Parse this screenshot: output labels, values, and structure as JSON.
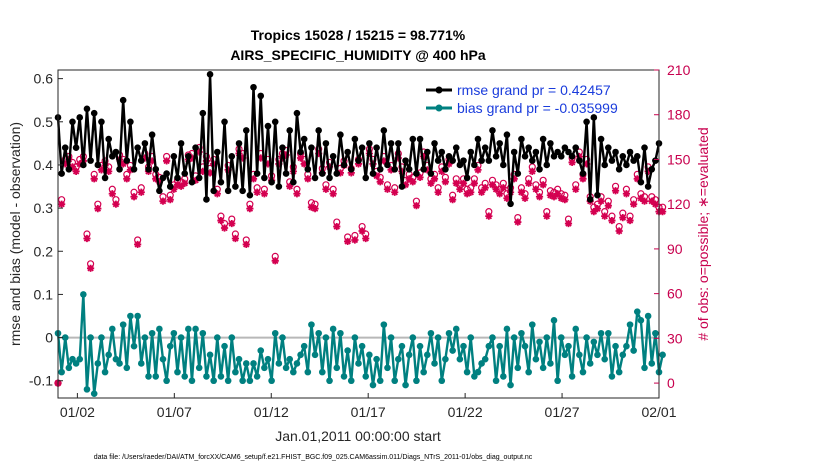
{
  "chart_data": {
    "type": "line",
    "title": "Tropics 15028 / 15215 = 98.771%",
    "subtitle": "AIRS_SPECIFIC_HUMIDITY @ 400 hPa",
    "xlabel": "Jan.01,2011 00:00:00 start",
    "ylabel": "rmse and bias (model - observation)",
    "ylabel_right": "# of obs: o=possible; ∗=evaluated",
    "xlim": [
      0,
      31
    ],
    "ylim": [
      -0.14,
      0.62
    ],
    "ylim_right": [
      -10,
      210
    ],
    "x_ticks": [
      1,
      6,
      11,
      16,
      21,
      26,
      31
    ],
    "x_tick_labels": [
      "01/02",
      "01/07",
      "01/12",
      "01/17",
      "01/22",
      "01/27",
      "02/01"
    ],
    "y_ticks": [
      -0.1,
      0,
      0.1,
      0.2,
      0.3,
      0.4,
      0.5,
      0.6
    ],
    "y_tick_labels": [
      "-0.1",
      "0",
      "0.1",
      "0.2",
      "0.3",
      "0.4",
      "0.5",
      "0.6"
    ],
    "y_ticks_right": [
      0,
      30,
      60,
      90,
      120,
      150,
      180,
      210
    ],
    "y_tick_labels_right": [
      "0",
      "30",
      "60",
      "90",
      "120",
      "150",
      "180",
      "210"
    ],
    "footer": "data file: /Users/raeder/DAI/ATM_forcXX/CAM6_setup/f.e21.FHIST_BGC.f09_025.CAM6assim.011/Diags_NTrS_2011-01/obs_diag_output.nc",
    "colors": {
      "rmse": "#000000",
      "bias": "#008080",
      "obs": "#d40050",
      "zero_line": "#b8b8b8"
    },
    "series": [
      {
        "name": "rmse grand pr = 0.42457",
        "values": [
          0.51,
          0.38,
          0.44,
          0.39,
          0.5,
          0.44,
          0.51,
          0.4,
          0.53,
          0.41,
          0.52,
          0.4,
          0.5,
          0.37,
          0.46,
          0.42,
          0.43,
          0.39,
          0.55,
          0.41,
          0.5,
          0.39,
          0.44,
          0.41,
          0.45,
          0.39,
          0.47,
          0.39,
          0.34,
          0.37,
          0.38,
          0.35,
          0.42,
          0.37,
          0.45,
          0.38,
          0.42,
          0.36,
          0.44,
          0.37,
          0.52,
          0.32,
          0.61,
          0.34,
          0.43,
          0.36,
          0.5,
          0.34,
          0.42,
          0.35,
          0.45,
          0.34,
          0.48,
          0.33,
          0.58,
          0.38,
          0.56,
          0.37,
          0.49,
          0.36,
          0.5,
          0.35,
          0.44,
          0.38,
          0.48,
          0.36,
          0.52,
          0.43,
          0.46,
          0.39,
          0.44,
          0.37,
          0.48,
          0.38,
          0.45,
          0.37,
          0.42,
          0.38,
          0.47,
          0.4,
          0.43,
          0.39,
          0.46,
          0.41,
          0.44,
          0.37,
          0.45,
          0.38,
          0.44,
          0.39,
          0.48,
          0.4,
          0.45,
          0.39,
          0.45,
          0.35,
          0.41,
          0.39,
          0.46,
          0.38,
          0.46,
          0.39,
          0.43,
          0.38,
          0.45,
          0.41,
          0.43,
          0.39,
          0.42,
          0.41,
          0.44,
          0.4,
          0.41,
          0.37,
          0.43,
          0.4,
          0.46,
          0.41,
          0.44,
          0.41,
          0.48,
          0.42,
          0.45,
          0.4,
          0.47,
          0.31,
          0.43,
          0.38,
          0.46,
          0.42,
          0.44,
          0.41,
          0.43,
          0.39,
          0.46,
          0.4,
          0.45,
          0.42,
          0.43,
          0.42,
          0.44,
          0.43,
          0.42,
          0.44,
          0.41,
          0.38,
          0.5,
          0.32,
          0.51,
          0.33,
          0.46,
          0.4,
          0.44,
          0.41,
          0.43,
          0.39,
          0.42,
          0.4,
          0.43,
          0.41,
          0.42,
          0.36,
          0.44,
          0.35,
          0.39,
          0.41,
          0.45
        ]
      },
      {
        "name": "bias grand pr = -0.035999",
        "values": [
          0.01,
          -0.08,
          0.0,
          -0.07,
          -0.05,
          -0.06,
          -0.05,
          0.1,
          -0.12,
          0.0,
          -0.13,
          -0.06,
          0.0,
          -0.08,
          -0.04,
          0.02,
          -0.05,
          -0.06,
          0.03,
          -0.07,
          0.05,
          -0.02,
          0.05,
          -0.06,
          0.0,
          -0.09,
          0.01,
          -0.09,
          0.02,
          -0.05,
          -0.1,
          -0.02,
          0.01,
          -0.08,
          0.0,
          -0.09,
          0.02,
          -0.1,
          0.02,
          -0.07,
          0.01,
          -0.09,
          -0.04,
          -0.1,
          0.0,
          -0.09,
          -0.02,
          -0.1,
          0.0,
          -0.08,
          -0.05,
          -0.1,
          -0.06,
          -0.1,
          -0.06,
          -0.09,
          -0.03,
          -0.07,
          -0.05,
          -0.1,
          0.01,
          -0.06,
          0.0,
          -0.07,
          -0.05,
          -0.08,
          -0.06,
          -0.04,
          -0.02,
          -0.08,
          0.03,
          -0.04,
          0.01,
          -0.08,
          0.0,
          -0.1,
          0.02,
          -0.07,
          0.01,
          -0.09,
          -0.03,
          -0.1,
          0.0,
          -0.06,
          -0.02,
          -0.09,
          -0.04,
          -0.11,
          -0.05,
          -0.1,
          0.03,
          -0.07,
          0.0,
          -0.1,
          -0.05,
          -0.02,
          -0.11,
          -0.04,
          0.0,
          -0.1,
          -0.02,
          -0.08,
          -0.04,
          0.01,
          -0.06,
          0.0,
          -0.1,
          -0.05,
          0.01,
          -0.03,
          0.02,
          -0.05,
          -0.02,
          -0.08,
          0.0,
          -0.09,
          -0.08,
          -0.06,
          -0.05,
          -0.02,
          0.0,
          -0.1,
          -0.02,
          -0.09,
          0.02,
          -0.11,
          0.0,
          -0.07,
          0.01,
          -0.02,
          -0.08,
          0.03,
          -0.05,
          -0.01,
          -0.07,
          0.0,
          -0.06,
          0.04,
          -0.1,
          0.0,
          -0.04,
          -0.02,
          -0.09,
          0.02,
          -0.04,
          -0.08,
          0.0,
          -0.06,
          -0.01,
          -0.04,
          0.01,
          -0.05,
          0.01,
          -0.09,
          -0.02,
          -0.08,
          -0.04,
          -0.02,
          0.03,
          -0.03,
          0.06,
          0.04,
          -0.07,
          0.05,
          -0.06,
          0.01,
          -0.08,
          -0.04
        ]
      },
      {
        "name": "obs possible (o)",
        "axis": "right",
        "values": [
          0,
          123,
          150,
          152,
          148,
          145,
          150,
          152,
          100,
          80,
          140,
          120,
          146,
          149,
          145,
          130,
          123,
          153,
          150,
          140,
          146,
          128,
          96,
          131,
          154,
          145,
          152,
          140,
          138,
          125,
          152,
          126,
          133,
          136,
          135,
          137,
          153,
          154,
          139,
          158,
          145,
          152,
          144,
          150,
          130,
          112,
          107,
          146,
          110,
          100,
          157,
          154,
          96,
          120,
          140,
          131,
          154,
          130,
          150,
          139,
          85,
          150,
          154,
          156,
          135,
          145,
          130,
          154,
          150,
          140,
          121,
          120,
          157,
          144,
          133,
          148,
          130,
          108,
          144,
          149,
          98,
          144,
          99,
          150,
          105,
          100,
          157,
          150,
          142,
          138,
          152,
          133,
          146,
          131,
          154,
          145,
          136,
          140,
          138,
          122,
          141,
          155,
          146,
          137,
          140,
          131,
          145,
          138,
          150,
          126,
          137,
          133,
          137,
          130,
          131,
          137,
          146,
          131,
          134,
          115,
          136,
          133,
          130,
          134,
          127,
          131,
          140,
          111,
          131,
          127,
          137,
          145,
          133,
          128,
          136,
          115,
          129,
          128,
          130,
          127,
          126,
          110,
          151,
          133,
          155,
          140,
          150,
          125,
          118,
          120,
          125,
          115,
          122,
          112,
          132,
          105,
          114,
          130,
          112,
          123,
          140,
          127,
          125,
          145,
          125,
          123,
          118,
          118
        ]
      },
      {
        "name": "obs evaluated (∗)",
        "axis": "right",
        "values": [
          0,
          120,
          147,
          150,
          145,
          142,
          147,
          149,
          97,
          77,
          137,
          117,
          143,
          146,
          142,
          127,
          120,
          150,
          147,
          137,
          143,
          125,
          93,
          128,
          151,
          142,
          149,
          137,
          135,
          122,
          149,
          123,
          130,
          133,
          132,
          134,
          150,
          151,
          136,
          155,
          142,
          149,
          141,
          147,
          127,
          109,
          104,
          143,
          107,
          97,
          154,
          151,
          93,
          117,
          137,
          128,
          151,
          127,
          147,
          136,
          82,
          147,
          151,
          153,
          132,
          142,
          127,
          151,
          147,
          137,
          118,
          117,
          154,
          141,
          130,
          145,
          127,
          105,
          141,
          146,
          95,
          141,
          96,
          147,
          102,
          97,
          154,
          147,
          139,
          135,
          149,
          130,
          143,
          128,
          151,
          142,
          133,
          137,
          135,
          119,
          138,
          152,
          143,
          134,
          137,
          128,
          142,
          135,
          147,
          123,
          134,
          130,
          134,
          127,
          128,
          134,
          143,
          128,
          131,
          112,
          133,
          130,
          127,
          131,
          124,
          128,
          137,
          108,
          128,
          124,
          134,
          142,
          130,
          125,
          133,
          112,
          126,
          125,
          127,
          124,
          123,
          107,
          148,
          130,
          152,
          137,
          147,
          122,
          115,
          117,
          122,
          112,
          119,
          109,
          129,
          102,
          111,
          127,
          109,
          120,
          137,
          124,
          122,
          142,
          122,
          120,
          115,
          115
        ]
      }
    ],
    "legend": [
      "rmse grand pr = 0.42457",
      "bias grand pr = -0.035999"
    ],
    "legend_position": "top-right"
  }
}
